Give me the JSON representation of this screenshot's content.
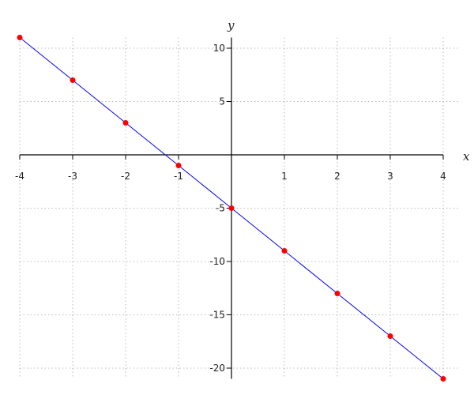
{
  "chart_data": {
    "type": "line",
    "title": "",
    "xlabel": "x",
    "ylabel": "y",
    "xlim": [
      -4,
      4
    ],
    "ylim": [
      -21,
      11
    ],
    "grid": true,
    "x_ticks": [
      -4,
      -3,
      -2,
      -1,
      1,
      2,
      3,
      4
    ],
    "y_ticks": [
      10,
      5,
      -5,
      -10,
      -15,
      -20
    ],
    "x_tick_labels": [
      "-4",
      "-3",
      "-2",
      "-1",
      "1",
      "2",
      "3",
      "4"
    ],
    "y_tick_labels": [
      "10",
      "5",
      "-5",
      "-10",
      "-15",
      "-20"
    ],
    "series": [
      {
        "x": [
          -4,
          -3,
          -2,
          -1,
          0,
          1,
          2,
          3,
          4
        ],
        "y": [
          11,
          7,
          3,
          -1,
          -5,
          -9,
          -13,
          -17,
          -21
        ],
        "line_color": "#0000ff",
        "marker_color": "#ff0000"
      }
    ]
  }
}
